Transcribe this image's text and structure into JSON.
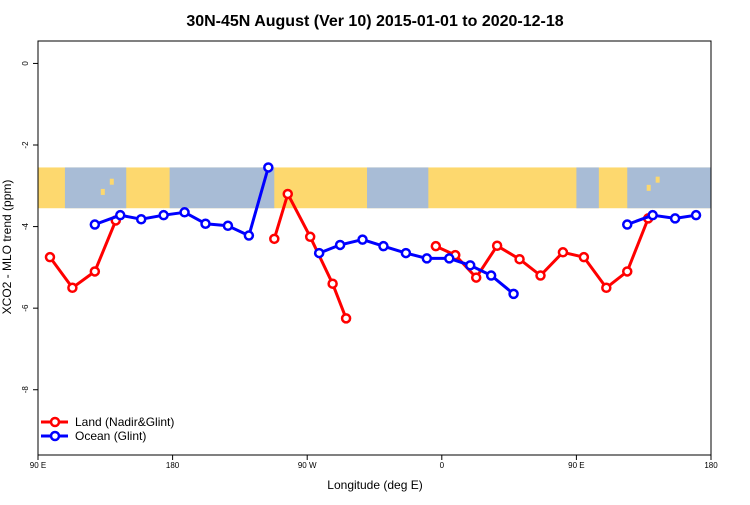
{
  "chart_data": {
    "type": "line",
    "title": "30N-45N August (Ver 10)   2015-01-01 to 2020-12-18",
    "xlabel": "Longitude (deg E)",
    "ylabel": "XCO2 - MLO trend (ppm)",
    "x_ticks": [
      {
        "value": 90,
        "label": "90 E"
      },
      {
        "value": 180,
        "label": "180"
      },
      {
        "value": 270,
        "label": "90 W"
      },
      {
        "value": 360,
        "label": "0"
      },
      {
        "value": 450,
        "label": "90 E"
      },
      {
        "value": 540,
        "label": "180"
      }
    ],
    "y_ticks": [
      {
        "value": 0,
        "label": "0"
      },
      {
        "value": -2,
        "label": "-2"
      },
      {
        "value": -4,
        "label": "-4"
      },
      {
        "value": -6,
        "label": "-6"
      },
      {
        "value": -8,
        "label": "-8"
      }
    ],
    "xlim": [
      90,
      540
    ],
    "ylim": [
      -9.6,
      0.55
    ],
    "map_band_y": [
      -2.55,
      -3.55
    ],
    "legend_position": "bottom-left",
    "series": [
      {
        "name": "Land (Nadir&Glint)",
        "color": "#ff0000",
        "segments": [
          [
            [
              98,
              -4.75
            ],
            [
              113,
              -5.5
            ],
            [
              128,
              -5.1
            ],
            [
              142,
              -3.85
            ]
          ],
          [
            [
              248,
              -4.3
            ],
            [
              257,
              -3.2
            ],
            [
              272,
              -4.25
            ],
            [
              287,
              -5.4
            ],
            [
              296,
              -6.25
            ]
          ],
          [
            [
              356,
              -4.48
            ],
            [
              369,
              -4.7
            ],
            [
              383,
              -5.25
            ],
            [
              397,
              -4.47
            ],
            [
              412,
              -4.8
            ],
            [
              426,
              -5.2
            ],
            [
              441,
              -4.63
            ],
            [
              455,
              -4.75
            ],
            [
              470,
              -5.5
            ],
            [
              484,
              -5.1
            ],
            [
              498,
              -3.8
            ]
          ]
        ]
      },
      {
        "name": "Ocean (Glint)",
        "color": "#0000ff",
        "segments": [
          [
            [
              128,
              -3.95
            ],
            [
              145,
              -3.72
            ],
            [
              159,
              -3.82
            ],
            [
              174,
              -3.72
            ],
            [
              188,
              -3.65
            ],
            [
              202,
              -3.93
            ],
            [
              217,
              -3.98
            ],
            [
              231,
              -4.22
            ],
            [
              244,
              -2.55
            ]
          ],
          [
            [
              278,
              -4.65
            ],
            [
              292,
              -4.45
            ],
            [
              307,
              -4.32
            ],
            [
              321,
              -4.48
            ],
            [
              336,
              -4.65
            ],
            [
              350,
              -4.78
            ],
            [
              365,
              -4.78
            ],
            [
              379,
              -4.95
            ],
            [
              393,
              -5.2
            ],
            [
              408,
              -5.65
            ]
          ],
          [
            [
              484,
              -3.95
            ],
            [
              501,
              -3.72
            ],
            [
              516,
              -3.8
            ],
            [
              530,
              -3.72
            ]
          ]
        ]
      }
    ]
  }
}
